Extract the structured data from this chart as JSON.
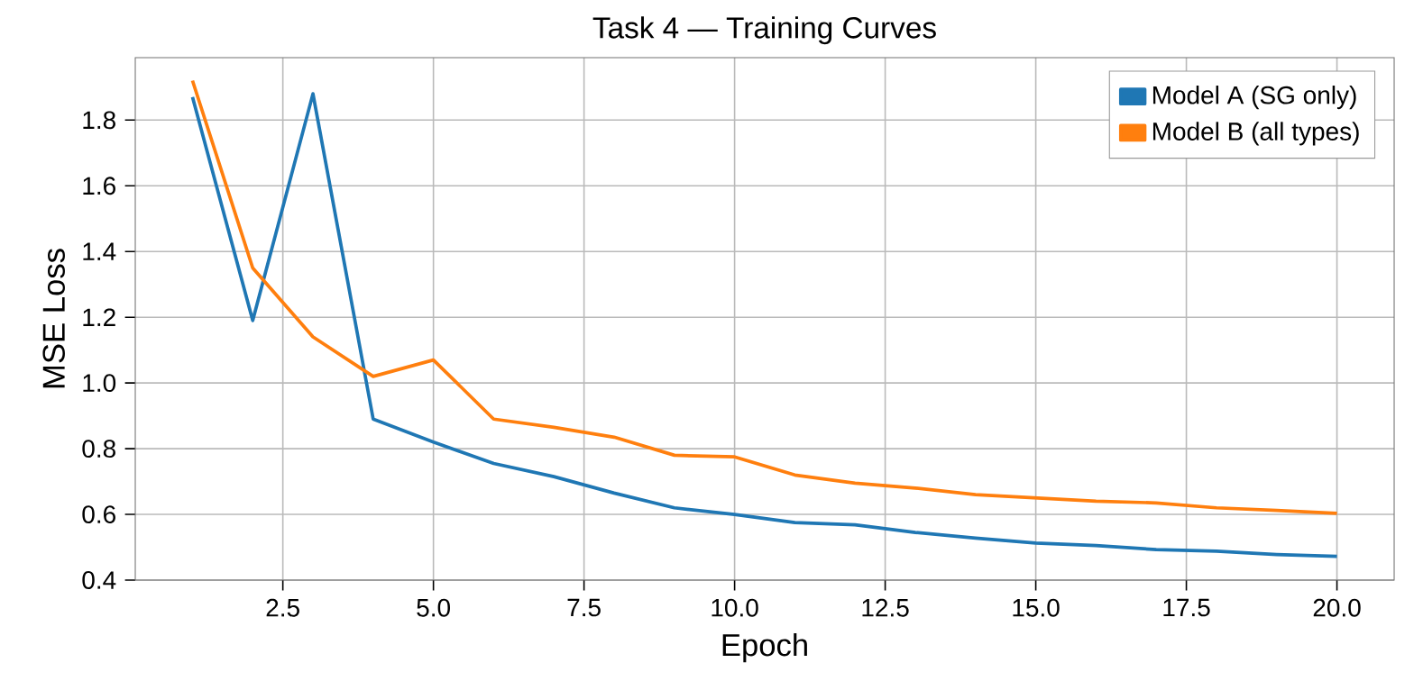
{
  "chart_data": {
    "type": "line",
    "title": "Task 4 — Training Curves",
    "xlabel": "Epoch",
    "ylabel": "MSE Loss",
    "x": [
      1,
      2,
      3,
      4,
      5,
      6,
      7,
      8,
      9,
      10,
      11,
      12,
      13,
      14,
      15,
      16,
      17,
      18,
      19,
      20
    ],
    "series": [
      {
        "name": "Model A (SG only)",
        "color": "#1f77b4",
        "values": [
          1.87,
          1.19,
          1.88,
          0.89,
          0.82,
          0.755,
          0.715,
          0.665,
          0.62,
          0.6,
          0.575,
          0.568,
          0.545,
          0.528,
          0.513,
          0.505,
          0.493,
          0.488,
          0.478,
          0.472
        ]
      },
      {
        "name": "Model B (all types)",
        "color": "#ff7f0e",
        "values": [
          1.92,
          1.35,
          1.14,
          1.02,
          1.07,
          0.89,
          0.865,
          0.835,
          0.78,
          0.775,
          0.72,
          0.695,
          0.68,
          0.66,
          0.65,
          0.64,
          0.635,
          0.62,
          0.612,
          0.603
        ]
      }
    ],
    "xlim": [
      0.05,
      20.95
    ],
    "ylim": [
      0.4,
      1.99
    ],
    "xticks": [
      2.5,
      {
        "value": 5,
        "label": "5.0"
      },
      7.5,
      {
        "value": 10,
        "label": "10.0"
      },
      12.5,
      {
        "value": 15,
        "label": "15.0"
      },
      17.5,
      {
        "value": 20,
        "label": "20.0"
      }
    ],
    "yticks": [
      0.4,
      0.6,
      0.8,
      {
        "value": 1,
        "label": "1.0"
      },
      1.2,
      1.4,
      1.6,
      1.8
    ],
    "grid": true,
    "legend": "top right",
    "marker": "none",
    "line_style": "solid"
  }
}
